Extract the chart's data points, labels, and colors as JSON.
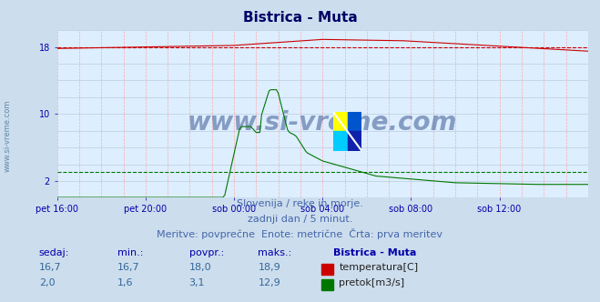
{
  "title": "Bistrica - Muta",
  "bg_color": "#ccdded",
  "plot_bg_color": "#ddeeff",
  "grid_h_color": "#bbccdd",
  "grid_v_color": "#ffaaaa",
  "temp_color": "#cc0000",
  "flow_color": "#007700",
  "height_color": "#0000bb",
  "avg_line_color": "#cc0000",
  "watermark": "www.si-vreme.com",
  "watermark_color": "#1a3a7a",
  "logo_colors": [
    "#ffff00",
    "#0055cc",
    "#00ccff",
    "#003399"
  ],
  "text1": "Slovenija / reke in morje.",
  "text2": "zadnji dan / 5 minut.",
  "text3": "Meritve: povprečne  Enote: metrične  Črta: prva meritev",
  "subtitle_color": "#4466aa",
  "table_headers": [
    "sedaj:",
    "min.:",
    "povpr.:",
    "maks.:",
    "Bistrica - Muta"
  ],
  "table_row1": [
    "16,7",
    "16,7",
    "18,0",
    "18,9"
  ],
  "table_row2": [
    "2,0",
    "1,6",
    "3,1",
    "12,9"
  ],
  "legend_temp": "temperatura[C]",
  "legend_flow": "pretok[m3/s]",
  "header_color": "#0000aa",
  "value_color": "#336699",
  "temp_avg_value": 17.95,
  "flow_avg_value": 3.1,
  "ylim": [
    0,
    20
  ],
  "xlim": [
    0,
    288
  ],
  "ytick_vals": [
    2,
    10,
    18
  ],
  "xtick_positions": [
    0,
    48,
    96,
    144,
    192,
    240
  ],
  "xtick_labels": [
    "pet 16:00",
    "pet 20:00",
    "sob 00:00",
    "sob 04:00",
    "sob 08:00",
    "sob 12:00"
  ],
  "n_points": 289,
  "title_fontsize": 11,
  "axis_label_fontsize": 7,
  "text_fontsize": 8
}
